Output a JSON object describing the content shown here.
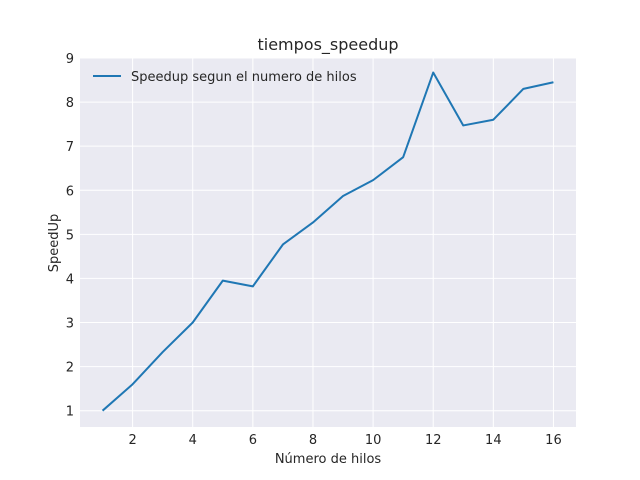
{
  "chart_data": {
    "type": "line",
    "title": "tiempos_speedup",
    "xlabel": "Número de hilos",
    "ylabel": "SpeedUp",
    "x": [
      1,
      2,
      3,
      4,
      5,
      6,
      7,
      8,
      9,
      10,
      11,
      12,
      13,
      14,
      15,
      16
    ],
    "series": [
      {
        "name": "Speedup segun el numero de hilos",
        "color": "#1f77b4",
        "values": [
          1.0,
          1.6,
          2.33,
          3.0,
          3.95,
          3.82,
          4.77,
          5.27,
          5.87,
          6.23,
          6.75,
          8.67,
          7.47,
          7.6,
          8.3,
          8.45
        ]
      }
    ],
    "xlim": [
      0.25,
      16.75
    ],
    "ylim": [
      0.63,
      9.0
    ],
    "xticks": [
      2,
      4,
      6,
      8,
      10,
      12,
      14,
      16
    ],
    "yticks": [
      1,
      2,
      3,
      4,
      5,
      6,
      7,
      8,
      9
    ],
    "xtick_labels": [
      "2",
      "4",
      "6",
      "8",
      "10",
      "12",
      "14",
      "16"
    ],
    "ytick_labels": [
      "1",
      "2",
      "3",
      "4",
      "5",
      "6",
      "7",
      "8",
      "9"
    ],
    "grid": true,
    "legend_position": "upper-left",
    "background": "#eaeaf2",
    "grid_color": "#ffffff"
  }
}
